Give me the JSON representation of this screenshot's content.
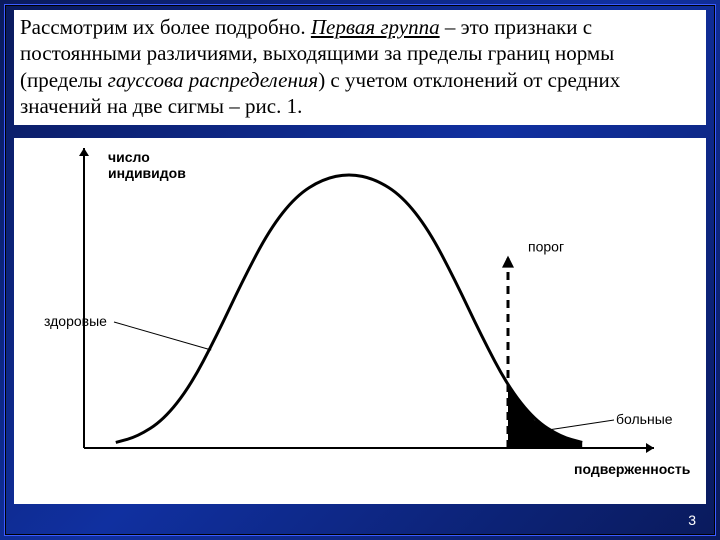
{
  "paragraph": {
    "pre": "Рассмотрим их более подробно. ",
    "group": "Первая группа",
    "mid": " – это  признаки с постоянными различиями, выходящими за пределы границ нормы (пределы ",
    "dist": "гауссова распределения",
    "post": ") с учетом отклонений от средних значений на две сигмы – рис. 1.",
    "fontsize": 21,
    "color": "#000000"
  },
  "chart": {
    "type": "line",
    "background_color": "#ffffff",
    "axis_color": "#000000",
    "curve_color": "#000000",
    "curve_width": 3,
    "fill_color": "#000000",
    "y_axis_label": "число\nиндивидов",
    "x_axis_label": "подверженность",
    "label_healthy": "здоровые",
    "label_sick": "больные",
    "label_threshold": "порог",
    "label_fontsize": 14,
    "axis_label_fontsize": 14,
    "xlim": [
      0,
      100
    ],
    "ylim": [
      0,
      100
    ],
    "curve_points": [
      [
        6,
        2
      ],
      [
        10,
        4
      ],
      [
        15,
        10
      ],
      [
        20,
        22
      ],
      [
        25,
        40
      ],
      [
        30,
        60
      ],
      [
        35,
        78
      ],
      [
        40,
        90
      ],
      [
        45,
        96
      ],
      [
        50,
        98
      ],
      [
        55,
        96
      ],
      [
        60,
        90
      ],
      [
        65,
        78
      ],
      [
        70,
        60
      ],
      [
        75,
        40
      ],
      [
        80,
        22
      ],
      [
        85,
        10
      ],
      [
        90,
        4
      ],
      [
        94,
        2
      ]
    ],
    "threshold_x": 80,
    "threshold_arrow": {
      "dash": "8,6",
      "width": 3
    },
    "arrowhead_size": 8,
    "tail_fill_points": [
      [
        80,
        22
      ],
      [
        85,
        10
      ],
      [
        90,
        4
      ],
      [
        94,
        2
      ],
      [
        94,
        0
      ],
      [
        80,
        0
      ]
    ]
  },
  "page_number": "3",
  "page_number_fontsize": 14
}
